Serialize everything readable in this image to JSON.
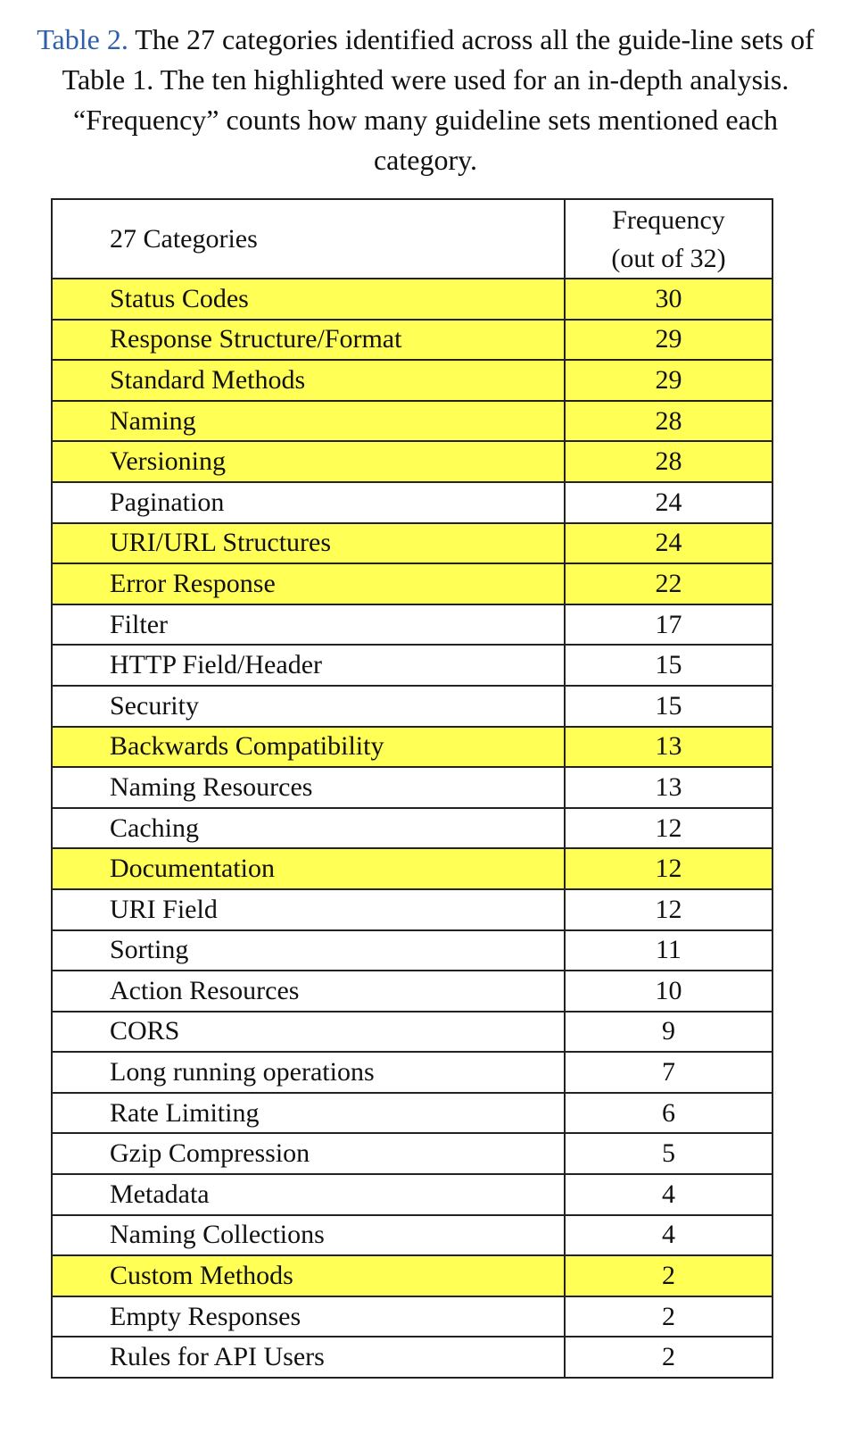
{
  "caption": {
    "label": "Table 2.",
    "text": " The 27 categories identified across all the guide-line sets of Table 1. The ten highlighted were used for an in-depth analysis. “Frequency” counts how many guideline sets mentioned each category."
  },
  "table": {
    "header": {
      "category": "27 Categories",
      "frequency_line1": "Frequency",
      "frequency_line2": "(out of 32)"
    },
    "highlight_color": "#ffff55",
    "rows": [
      {
        "category": "Status Codes",
        "frequency": "30",
        "highlighted": true
      },
      {
        "category": "Response Structure/Format",
        "frequency": "29",
        "highlighted": true
      },
      {
        "category": "Standard Methods",
        "frequency": "29",
        "highlighted": true
      },
      {
        "category": "Naming",
        "frequency": "28",
        "highlighted": true
      },
      {
        "category": "Versioning",
        "frequency": "28",
        "highlighted": true
      },
      {
        "category": "Pagination",
        "frequency": "24",
        "highlighted": false
      },
      {
        "category": "URI/URL Structures",
        "frequency": "24",
        "highlighted": true
      },
      {
        "category": "Error Response",
        "frequency": "22",
        "highlighted": true
      },
      {
        "category": "Filter",
        "frequency": "17",
        "highlighted": false
      },
      {
        "category": "HTTP Field/Header",
        "frequency": "15",
        "highlighted": false
      },
      {
        "category": "Security",
        "frequency": "15",
        "highlighted": false
      },
      {
        "category": "Backwards Compatibility",
        "frequency": "13",
        "highlighted": true
      },
      {
        "category": "Naming Resources",
        "frequency": "13",
        "highlighted": false
      },
      {
        "category": "Caching",
        "frequency": "12",
        "highlighted": false
      },
      {
        "category": "Documentation",
        "frequency": "12",
        "highlighted": true
      },
      {
        "category": "URI Field",
        "frequency": "12",
        "highlighted": false
      },
      {
        "category": "Sorting",
        "frequency": "11",
        "highlighted": false
      },
      {
        "category": "Action Resources",
        "frequency": "10",
        "highlighted": false
      },
      {
        "category": "CORS",
        "frequency": "9",
        "highlighted": false
      },
      {
        "category": "Long running operations",
        "frequency": "7",
        "highlighted": false
      },
      {
        "category": "Rate Limiting",
        "frequency": "6",
        "highlighted": false
      },
      {
        "category": "Gzip Compression",
        "frequency": "5",
        "highlighted": false
      },
      {
        "category": "Metadata",
        "frequency": "4",
        "highlighted": false
      },
      {
        "category": "Naming Collections",
        "frequency": "4",
        "highlighted": false
      },
      {
        "category": "Custom Methods",
        "frequency": "2",
        "highlighted": true
      },
      {
        "category": "Empty Responses",
        "frequency": "2",
        "highlighted": false
      },
      {
        "category": "Rules for API Users",
        "frequency": "2",
        "highlighted": false
      }
    ]
  }
}
